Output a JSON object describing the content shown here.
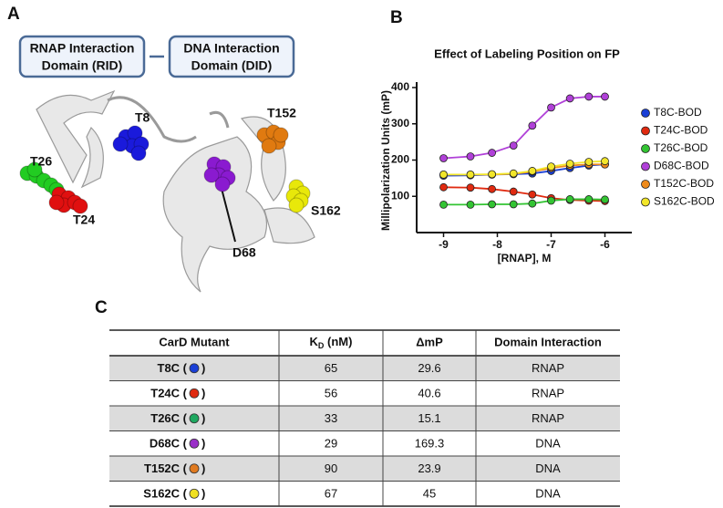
{
  "panel_a": {
    "panel_label": "A",
    "domain_boxes": [
      [
        "RNAP Interaction",
        "Domain (RID)"
      ],
      [
        "DNA Interaction",
        "Domain (DID)"
      ]
    ],
    "residues": [
      {
        "label": "T8",
        "color": "#1a1adb"
      },
      {
        "label": "T26",
        "color": "#22cc22"
      },
      {
        "label": "T24",
        "color": "#e01010"
      },
      {
        "label": "T152",
        "color": "#e07a10"
      },
      {
        "label": "S162",
        "color": "#e8e80a"
      },
      {
        "label": "D68",
        "color": "#8a1ad0"
      }
    ]
  },
  "panel_b": {
    "panel_label": "B"
  },
  "chart_data": {
    "type": "line",
    "title": "Effect of Labeling Position on FP",
    "x_label": "[RNAP], M",
    "y_label": "Millipolarization Units (mP)",
    "x": [
      -9,
      -8.5,
      -8.1,
      -7.7,
      -7.35,
      -7,
      -6.65,
      -6.3,
      -6
    ],
    "xlim": [
      -9.5,
      -5.5
    ],
    "xticks": [
      -9,
      -8,
      -7,
      -6
    ],
    "ylim": [
      0,
      400
    ],
    "yticks": [
      100,
      200,
      300,
      400
    ],
    "legend": "right",
    "series": [
      {
        "name": "T8C-BOD",
        "color": "#1a3fd6",
        "values": [
          157,
          158,
          160,
          161,
          163,
          170,
          178,
          185,
          188
        ]
      },
      {
        "name": "T24C-BOD",
        "color": "#e02a10",
        "values": [
          125,
          124,
          120,
          113,
          105,
          95,
          90,
          88,
          87
        ]
      },
      {
        "name": "T26C-BOD",
        "color": "#33c433",
        "values": [
          77,
          77,
          78,
          78,
          80,
          88,
          92,
          92,
          91
        ]
      },
      {
        "name": "D68C-BOD",
        "color": "#b040d8",
        "values": [
          205,
          210,
          220,
          240,
          295,
          345,
          370,
          375,
          375
        ]
      },
      {
        "name": "T152C-BOD",
        "color": "#ee8a1a",
        "values": [
          160,
          160,
          160,
          162,
          168,
          178,
          185,
          188,
          188
        ]
      },
      {
        "name": "S162C-BOD",
        "color": "#f2e62a",
        "values": [
          160,
          160,
          161,
          163,
          170,
          182,
          190,
          195,
          197
        ]
      }
    ]
  },
  "panel_c": {
    "panel_label": "C",
    "table": {
      "header": [
        "CarD Mutant",
        [
          "K",
          "D",
          " (nM)"
        ],
        "ΔmP",
        "Domain Interaction"
      ],
      "rows": [
        {
          "mutant": [
            "T8C (",
            ")"
          ],
          "dot_color": "#1a3fd6",
          "kd": 65,
          "dmp": 29.6,
          "domain": "RNAP"
        },
        {
          "mutant": [
            "T24C (",
            ")"
          ],
          "dot_color": "#e02a10",
          "kd": 56,
          "dmp": 40.6,
          "domain": "RNAP"
        },
        {
          "mutant": [
            "T26C (",
            ")"
          ],
          "dot_color": "#1ea860",
          "kd": 33,
          "dmp": 15.1,
          "domain": "RNAP"
        },
        {
          "mutant": [
            "D68C (",
            ")"
          ],
          "dot_color": "#9a30c8",
          "kd": 29,
          "dmp": 169.3,
          "domain": "DNA"
        },
        {
          "mutant": [
            "T152C (",
            ")"
          ],
          "dot_color": "#e07a20",
          "kd": 90,
          "dmp": 23.9,
          "domain": "DNA"
        },
        {
          "mutant": [
            "S162C (",
            ")"
          ],
          "dot_color": "#f0e020",
          "kd": 67,
          "dmp": 45,
          "domain": "DNA"
        }
      ]
    }
  }
}
